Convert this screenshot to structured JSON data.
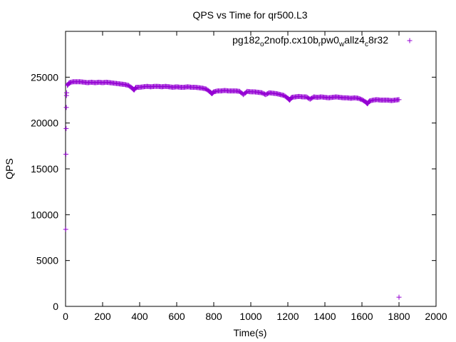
{
  "chart_data": {
    "type": "scatter",
    "title": "QPS vs Time for qr500.L3",
    "xlabel": "Time(s)",
    "ylabel": "QPS",
    "xlim": [
      0,
      2000
    ],
    "ylim": [
      0,
      30000
    ],
    "x_ticks": [
      0,
      200,
      400,
      600,
      800,
      1000,
      1200,
      1400,
      1600,
      1800,
      2000
    ],
    "y_ticks": [
      0,
      5000,
      10000,
      15000,
      20000,
      25000
    ],
    "grid": false,
    "legend_position": "top-right",
    "marker": "+",
    "color": "#9400d3",
    "series": [
      {
        "name_parts": [
          {
            "text": "pg182",
            "sub": false
          },
          {
            "text": "o",
            "sub": true
          },
          {
            "text": "2nofp.cx10b",
            "sub": false
          },
          {
            "text": "r",
            "sub": true
          },
          {
            "text": "pw0",
            "sub": false
          },
          {
            "text": "w",
            "sub": true
          },
          {
            "text": "allz4",
            "sub": false
          },
          {
            "text": "c",
            "sub": true
          },
          {
            "text": "8r32",
            "sub": false
          }
        ],
        "points": [
          [
            1,
            8400
          ],
          [
            2,
            16600
          ],
          [
            3,
            19400
          ],
          [
            4,
            21700
          ],
          [
            5,
            23000
          ],
          [
            6,
            23300
          ],
          [
            10,
            24100
          ],
          [
            20,
            24400
          ],
          [
            40,
            24500
          ],
          [
            60,
            24500
          ],
          [
            80,
            24500
          ],
          [
            100,
            24450
          ],
          [
            120,
            24400
          ],
          [
            140,
            24450
          ],
          [
            160,
            24400
          ],
          [
            180,
            24450
          ],
          [
            200,
            24400
          ],
          [
            220,
            24450
          ],
          [
            240,
            24400
          ],
          [
            260,
            24350
          ],
          [
            280,
            24300
          ],
          [
            300,
            24250
          ],
          [
            320,
            24200
          ],
          [
            340,
            24100
          ],
          [
            360,
            23800
          ],
          [
            370,
            23600
          ],
          [
            380,
            23900
          ],
          [
            400,
            23900
          ],
          [
            420,
            23950
          ],
          [
            440,
            24000
          ],
          [
            460,
            23950
          ],
          [
            480,
            24000
          ],
          [
            500,
            24000
          ],
          [
            520,
            23950
          ],
          [
            540,
            24000
          ],
          [
            560,
            23950
          ],
          [
            580,
            23900
          ],
          [
            600,
            23950
          ],
          [
            620,
            23900
          ],
          [
            640,
            23900
          ],
          [
            660,
            23950
          ],
          [
            680,
            23900
          ],
          [
            700,
            23900
          ],
          [
            720,
            23850
          ],
          [
            740,
            23800
          ],
          [
            760,
            23700
          ],
          [
            780,
            23400
          ],
          [
            790,
            23200
          ],
          [
            800,
            23400
          ],
          [
            820,
            23500
          ],
          [
            840,
            23500
          ],
          [
            860,
            23550
          ],
          [
            880,
            23500
          ],
          [
            900,
            23500
          ],
          [
            920,
            23500
          ],
          [
            940,
            23450
          ],
          [
            960,
            23100
          ],
          [
            980,
            23450
          ],
          [
            1000,
            23400
          ],
          [
            1020,
            23400
          ],
          [
            1040,
            23350
          ],
          [
            1060,
            23300
          ],
          [
            1080,
            23100
          ],
          [
            1100,
            23300
          ],
          [
            1120,
            23250
          ],
          [
            1140,
            23200
          ],
          [
            1160,
            23100
          ],
          [
            1180,
            23000
          ],
          [
            1200,
            22700
          ],
          [
            1210,
            22500
          ],
          [
            1220,
            22800
          ],
          [
            1240,
            22850
          ],
          [
            1260,
            22900
          ],
          [
            1280,
            22850
          ],
          [
            1300,
            22850
          ],
          [
            1320,
            22600
          ],
          [
            1340,
            22850
          ],
          [
            1360,
            22800
          ],
          [
            1380,
            22850
          ],
          [
            1400,
            22800
          ],
          [
            1420,
            22750
          ],
          [
            1440,
            22800
          ],
          [
            1460,
            22850
          ],
          [
            1480,
            22800
          ],
          [
            1500,
            22750
          ],
          [
            1520,
            22750
          ],
          [
            1540,
            22700
          ],
          [
            1560,
            22750
          ],
          [
            1580,
            22700
          ],
          [
            1600,
            22550
          ],
          [
            1620,
            22300
          ],
          [
            1630,
            22100
          ],
          [
            1640,
            22400
          ],
          [
            1660,
            22500
          ],
          [
            1680,
            22550
          ],
          [
            1700,
            22500
          ],
          [
            1720,
            22500
          ],
          [
            1740,
            22500
          ],
          [
            1760,
            22450
          ],
          [
            1780,
            22500
          ],
          [
            1800,
            22550
          ],
          [
            1800,
            1000
          ]
        ]
      }
    ]
  }
}
